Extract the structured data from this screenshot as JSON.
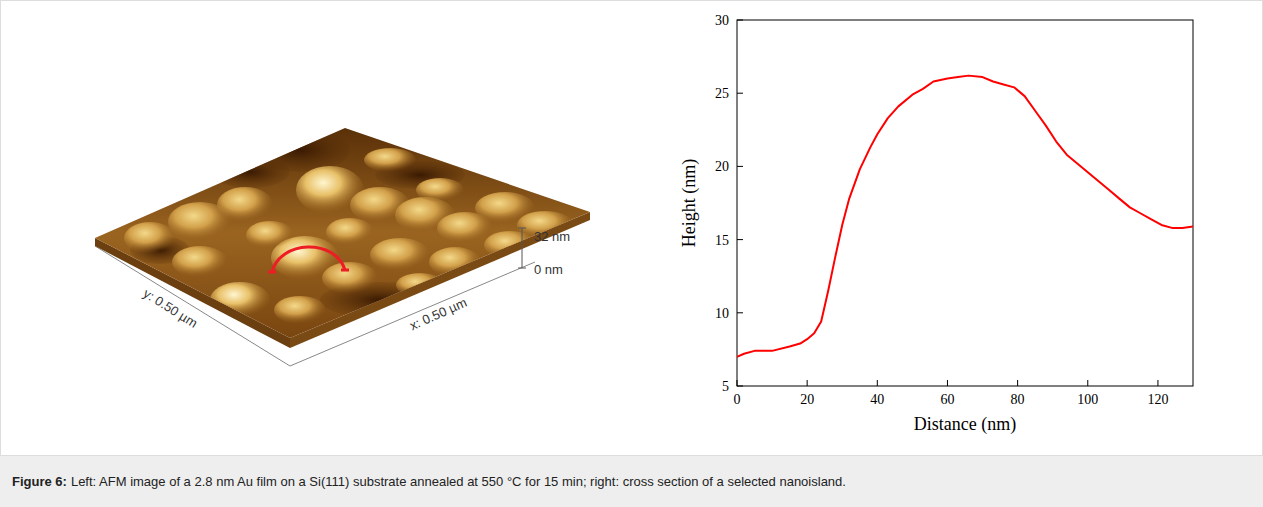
{
  "chart_data": {
    "type": "line",
    "x_label": "Distance (nm)",
    "y_label": "Height (nm)",
    "x": [
      0,
      2,
      5,
      10,
      15,
      18,
      20,
      22,
      24,
      26,
      28,
      30,
      32,
      35,
      38,
      40,
      43,
      46,
      50,
      53,
      56,
      60,
      63,
      66,
      70,
      73,
      76,
      79,
      82,
      85,
      88,
      91,
      94,
      97,
      100,
      103,
      106,
      109,
      112,
      115,
      118,
      121,
      124,
      127,
      130
    ],
    "values": [
      7.0,
      7.2,
      7.4,
      7.4,
      7.7,
      7.9,
      8.2,
      8.6,
      9.4,
      11.5,
      13.8,
      16.0,
      17.8,
      19.8,
      21.3,
      22.2,
      23.3,
      24.1,
      24.9,
      25.3,
      25.8,
      26.0,
      26.1,
      26.2,
      26.1,
      25.8,
      25.6,
      25.4,
      24.8,
      23.8,
      22.8,
      21.7,
      20.8,
      20.2,
      19.6,
      19.0,
      18.4,
      17.8,
      17.2,
      16.8,
      16.4,
      16.0,
      15.8,
      15.8,
      15.9
    ],
    "color": "#ff0000",
    "xlim": [
      0,
      130
    ],
    "ylim": [
      5,
      30
    ],
    "xticks": [
      0,
      20,
      40,
      60,
      80,
      100,
      120
    ],
    "yticks": [
      5,
      10,
      15,
      20,
      25,
      30
    ]
  },
  "afm_image": {
    "x_axis_label": "x: 0.50 µm",
    "y_axis_label": "y: 0.50 µm",
    "z_scale_top": "32 nm",
    "z_scale_bottom": "0 nm"
  },
  "caption": {
    "label": "Figure 6:",
    "text": "Left: AFM image of a 2.8 nm Au film on a Si(111) substrate annealed at 550 °C for 15 min; right: cross section of a selected nanoisland."
  }
}
